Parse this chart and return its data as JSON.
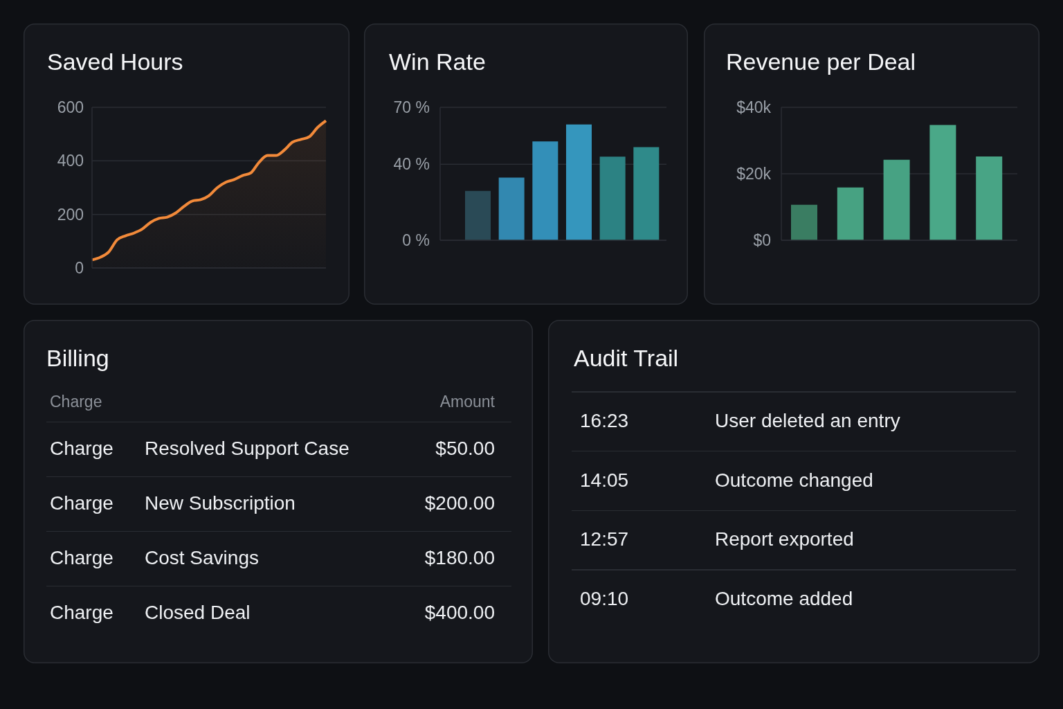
{
  "chart_data": [
    {
      "type": "area",
      "title": "Saved Hours",
      "categories": [
        null,
        null,
        null,
        null,
        null,
        null,
        null,
        null,
        null,
        null,
        null,
        null,
        null,
        null,
        null,
        null,
        null,
        null,
        null,
        null,
        null,
        null,
        null,
        null,
        null,
        null,
        null,
        null,
        null
      ],
      "values": [
        30,
        40,
        60,
        105,
        120,
        130,
        145,
        170,
        185,
        190,
        205,
        230,
        250,
        255,
        270,
        300,
        320,
        330,
        345,
        355,
        395,
        420,
        420,
        440,
        470,
        480,
        490,
        525,
        550
      ],
      "color": "#f28a3a",
      "ylim": [
        0,
        600
      ],
      "yticks": [
        0,
        200,
        400,
        600
      ],
      "grid": "y"
    },
    {
      "type": "bar",
      "title": "Win Rate",
      "categories": [
        null,
        null,
        null,
        null,
        null,
        null
      ],
      "values": [
        26,
        33,
        52,
        61,
        44,
        49
      ],
      "colors": [
        "#2a4a56",
        "#3288b0",
        "#338fb8",
        "#3596bd",
        "#2c8283",
        "#2f8a8a"
      ],
      "ylim": [
        0,
        70
      ],
      "yticks": [
        {
          "value": 0,
          "label": "0 %"
        },
        {
          "value": 40,
          "label": "40 %"
        },
        {
          "value": 70,
          "label": "70 %"
        }
      ],
      "grid": "y"
    },
    {
      "type": "bar",
      "title": "Revenue per Deal",
      "categories": [
        null,
        null,
        null,
        null,
        null
      ],
      "values": [
        10700,
        15900,
        24200,
        34700,
        25200
      ],
      "colors": [
        "#3a7d62",
        "#47a282",
        "#47a283",
        "#4aa888",
        "#48a485"
      ],
      "ylim": [
        0,
        40000
      ],
      "yticks": [
        {
          "value": 0,
          "label": "$0"
        },
        {
          "value": 20000,
          "label": "$20k"
        },
        {
          "value": 40000,
          "label": "$40k"
        }
      ],
      "grid": "y"
    },
    {
      "type": "other",
      "title": "Billing",
      "annotations": [
        "Charge",
        "Amount",
        "Charge",
        "Resolved Support Case",
        "$50.00",
        "Charge",
        "New Subscription",
        "$200.00",
        "Charge",
        "Cost Savings",
        "$180.00",
        "Charge",
        "Closed Deal",
        "$400.00"
      ]
    },
    {
      "type": "other",
      "title": "Audit Trail",
      "annotations": [
        "16:23",
        "User deleted an entry",
        "14:05",
        "Outcome changed",
        "12:57",
        "Report exported",
        "09:10",
        "Outcome added"
      ]
    }
  ]
}
